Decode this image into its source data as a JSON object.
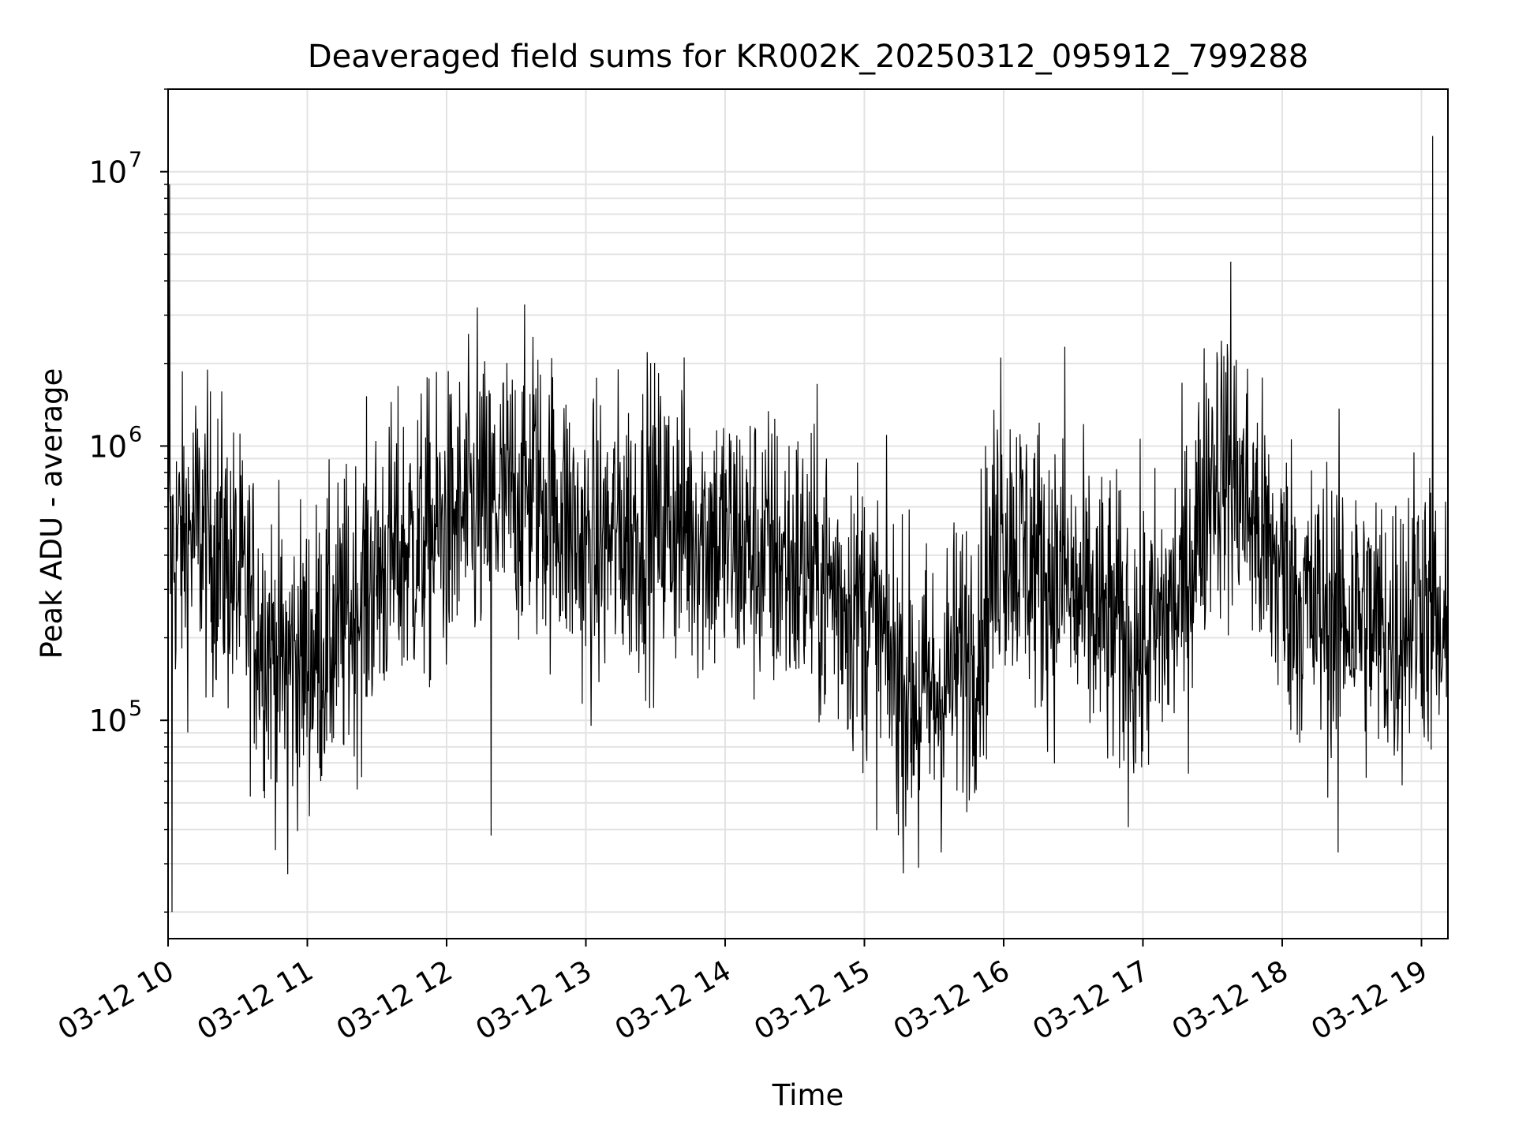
{
  "chart_data": {
    "type": "line",
    "title": "Deaveraged field sums for KR002K_20250312_095912_799288",
    "xlabel": "Time",
    "ylabel": "Peak ADU - average",
    "yscale": "log",
    "ylim": [
      16000,
      20000000
    ],
    "xlim_hours": [
      10.0,
      19.19
    ],
    "grid": true,
    "line_color": "#000000",
    "x_ticks": [
      {
        "hour": 10,
        "label": "03-12 10"
      },
      {
        "hour": 11,
        "label": "03-12 11"
      },
      {
        "hour": 12,
        "label": "03-12 12"
      },
      {
        "hour": 13,
        "label": "03-12 13"
      },
      {
        "hour": 14,
        "label": "03-12 14"
      },
      {
        "hour": 15,
        "label": "03-12 15"
      },
      {
        "hour": 16,
        "label": "03-12 16"
      },
      {
        "hour": 17,
        "label": "03-12 17"
      },
      {
        "hour": 18,
        "label": "03-12 18"
      },
      {
        "hour": 19,
        "label": "03-12 19"
      }
    ],
    "y_ticks": [
      {
        "value": 100000,
        "base": "10",
        "exp": "5"
      },
      {
        "value": 1000000,
        "base": "10",
        "exp": "6"
      },
      {
        "value": 10000000,
        "base": "10",
        "exp": "7"
      }
    ],
    "baseline_trend": {
      "description": "Approximate median level of the noisy time series (hour, value)",
      "points": [
        [
          10.0,
          400000
        ],
        [
          10.2,
          500000
        ],
        [
          10.4,
          400000
        ],
        [
          10.6,
          250000
        ],
        [
          10.8,
          160000
        ],
        [
          11.0,
          170000
        ],
        [
          11.2,
          200000
        ],
        [
          11.5,
          350000
        ],
        [
          11.8,
          450000
        ],
        [
          12.0,
          500000
        ],
        [
          12.3,
          600000
        ],
        [
          12.6,
          700000
        ],
        [
          12.8,
          600000
        ],
        [
          13.0,
          400000
        ],
        [
          13.3,
          500000
        ],
        [
          13.6,
          550000
        ],
        [
          14.0,
          450000
        ],
        [
          14.3,
          400000
        ],
        [
          14.6,
          350000
        ],
        [
          15.0,
          250000
        ],
        [
          15.3,
          130000
        ],
        [
          15.5,
          120000
        ],
        [
          15.8,
          200000
        ],
        [
          16.0,
          500000
        ],
        [
          16.3,
          350000
        ],
        [
          16.6,
          250000
        ],
        [
          17.0,
          180000
        ],
        [
          17.3,
          300000
        ],
        [
          17.5,
          900000
        ],
        [
          17.7,
          700000
        ],
        [
          17.9,
          400000
        ],
        [
          18.2,
          250000
        ],
        [
          18.5,
          250000
        ],
        [
          18.8,
          200000
        ],
        [
          19.0,
          300000
        ],
        [
          19.19,
          150000
        ]
      ]
    },
    "notable_peaks": [
      {
        "hour": 10.01,
        "value": 9000000
      },
      {
        "hour": 12.22,
        "value": 3200000
      },
      {
        "hour": 12.62,
        "value": 2500000
      },
      {
        "hour": 13.44,
        "value": 2200000
      },
      {
        "hour": 15.98,
        "value": 2100000
      },
      {
        "hour": 16.44,
        "value": 2300000
      },
      {
        "hour": 17.63,
        "value": 4700000
      },
      {
        "hour": 19.08,
        "value": 13500000
      }
    ],
    "notable_dips": [
      {
        "hour": 10.03,
        "value": 20000
      },
      {
        "hour": 10.86,
        "value": 27500
      },
      {
        "hour": 12.32,
        "value": 38000
      },
      {
        "hour": 15.39,
        "value": 29000
      },
      {
        "hour": 18.4,
        "value": 33000
      }
    ]
  }
}
